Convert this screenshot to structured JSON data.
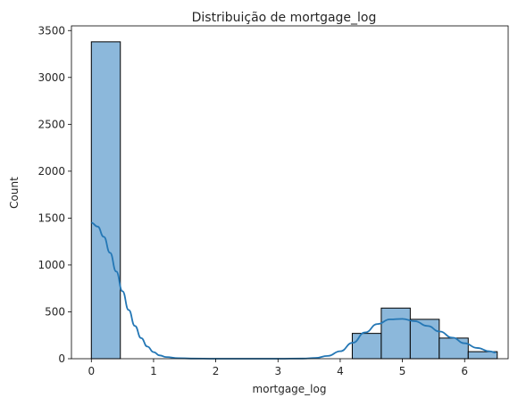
{
  "chart_data": {
    "type": "bar",
    "title": "Distribuição de mortgage_log",
    "xlabel": "mortgage_log",
    "ylabel": "Count",
    "xlim": [
      -0.32,
      6.7
    ],
    "ylim": [
      0,
      3550
    ],
    "xticks": [
      0,
      1,
      2,
      3,
      4,
      5,
      6
    ],
    "yticks": [
      0,
      500,
      1000,
      1500,
      2000,
      2500,
      3000,
      3500
    ],
    "grid": false,
    "bar_color": "#8cb8db",
    "edge_color": "#000000",
    "kde_color": "#2477b5",
    "bins": [
      {
        "x0": 0.0,
        "x1": 0.466,
        "count": 3380
      },
      {
        "x0": 0.466,
        "x1": 0.932,
        "count": 0
      },
      {
        "x0": 0.932,
        "x1": 1.398,
        "count": 0
      },
      {
        "x0": 1.398,
        "x1": 1.864,
        "count": 0
      },
      {
        "x0": 1.864,
        "x1": 2.33,
        "count": 0
      },
      {
        "x0": 2.33,
        "x1": 2.796,
        "count": 0
      },
      {
        "x0": 2.796,
        "x1": 3.262,
        "count": 0
      },
      {
        "x0": 3.262,
        "x1": 3.728,
        "count": 0
      },
      {
        "x0": 3.728,
        "x1": 4.194,
        "count": 0
      },
      {
        "x0": 4.194,
        "x1": 4.66,
        "count": 270
      },
      {
        "x0": 4.66,
        "x1": 5.126,
        "count": 540
      },
      {
        "x0": 5.126,
        "x1": 5.592,
        "count": 420
      },
      {
        "x0": 5.592,
        "x1": 6.058,
        "count": 220
      },
      {
        "x0": 6.058,
        "x1": 6.524,
        "count": 75
      }
    ],
    "kde": {
      "x": [
        0.0,
        0.1,
        0.2,
        0.3,
        0.4,
        0.5,
        0.6,
        0.7,
        0.8,
        0.9,
        1.0,
        1.1,
        1.2,
        1.4,
        1.6,
        2.0,
        2.5,
        3.0,
        3.4,
        3.6,
        3.8,
        4.0,
        4.2,
        4.4,
        4.6,
        4.8,
        5.0,
        5.2,
        5.4,
        5.6,
        5.8,
        6.0,
        6.2,
        6.4,
        6.5
      ],
      "y": [
        1450,
        1410,
        1300,
        1130,
        930,
        720,
        520,
        350,
        220,
        130,
        70,
        35,
        18,
        6,
        2,
        0,
        0,
        0,
        2,
        8,
        30,
        80,
        170,
        280,
        370,
        420,
        425,
        400,
        350,
        290,
        225,
        165,
        115,
        80,
        65
      ]
    }
  }
}
